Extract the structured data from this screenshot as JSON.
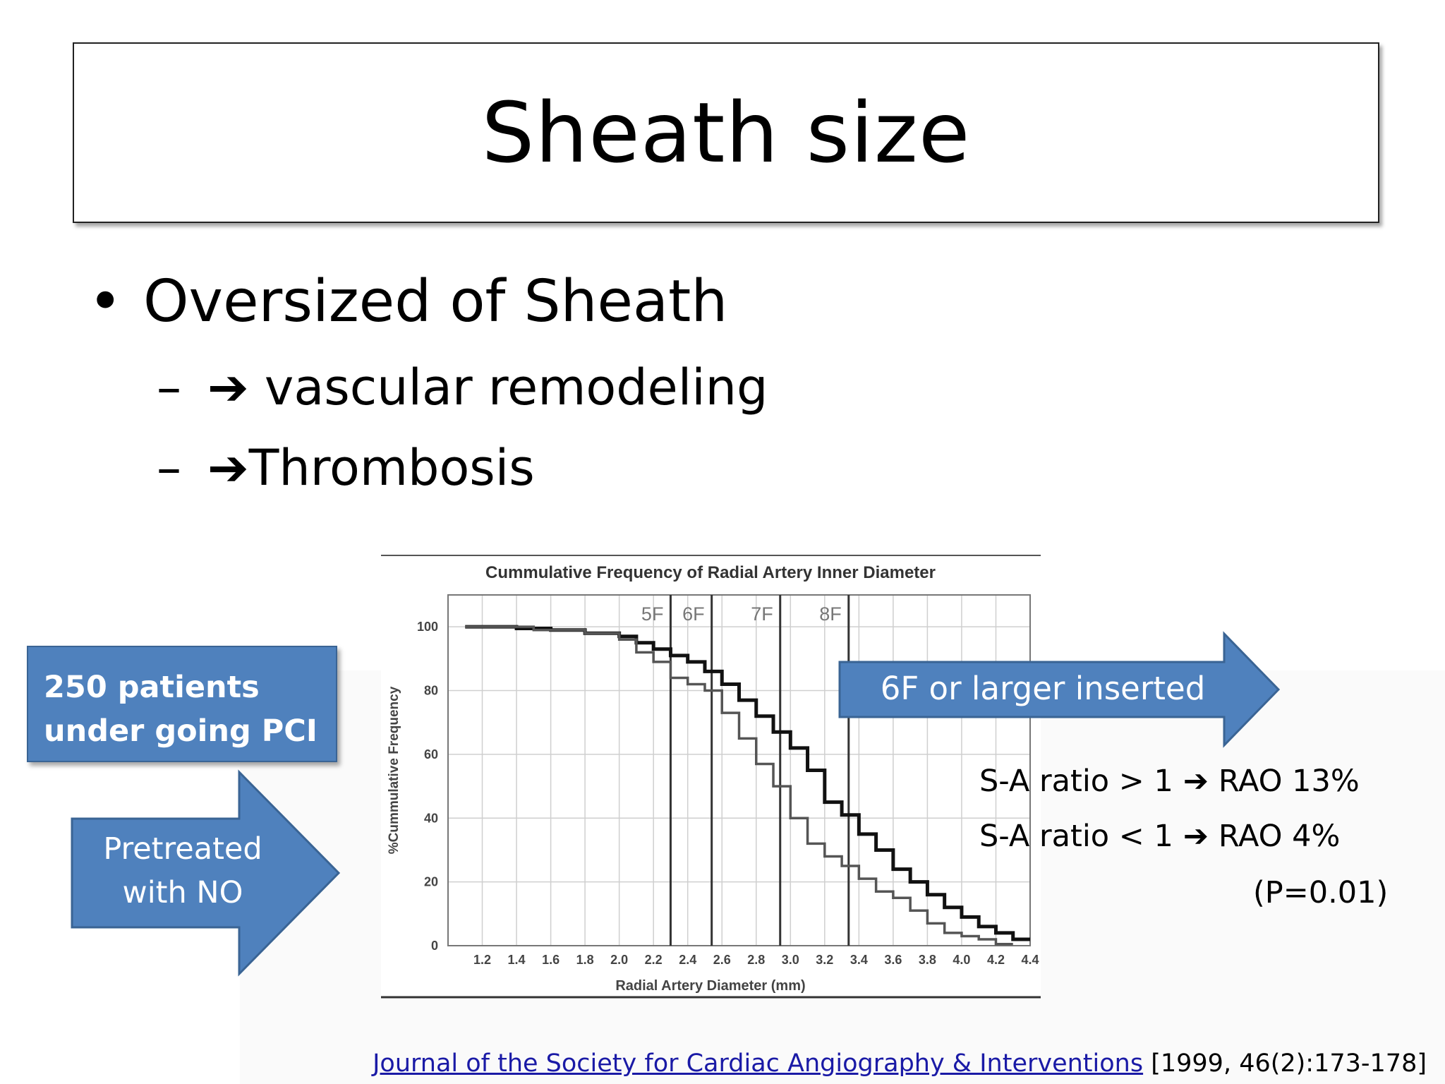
{
  "slide": {
    "title": "Sheath size",
    "bullet_marker": "•",
    "bullet1": "Oversized of Sheath",
    "sub_dash": "–",
    "sub_arrow": "➔",
    "sub1": " vascular remodeling",
    "sub2": "Thrombosis"
  },
  "callouts": {
    "patients_line1": "250 patients",
    "patients_line2": "under going PCI",
    "pretreated_line1": "Pretreated",
    "pretreated_line2": "with NO",
    "inserted": "6F or larger inserted"
  },
  "results": {
    "ratio_high_label": "S-A ratio > 1",
    "ratio_high_value": "RAO 13%",
    "ratio_low_label": "S-A ratio < 1",
    "ratio_low_value": "RAO 4%",
    "arrow": "➔",
    "p_value": "(P=0.01)"
  },
  "citation": {
    "journal": "Journal of the Society for Cardiac Angiography & Interventions",
    "ref": " [1999, 46(2):173-178]"
  },
  "colors": {
    "callout_fill": "#4f81bd",
    "callout_border": "#3a6494",
    "link": "#1a1aa6"
  },
  "chart_data": {
    "type": "line",
    "title": "Cummulative Frequency of Radial Artery Inner Diameter",
    "xlabel": "Radial Artery Diameter (mm)",
    "ylabel": "%Cummulative Frequency",
    "xlim": [
      1.0,
      4.4
    ],
    "ylim": [
      0,
      110
    ],
    "x_ticks": [
      1.2,
      1.4,
      1.6,
      1.8,
      2.0,
      2.2,
      2.4,
      2.6,
      2.8,
      3.0,
      3.2,
      3.4,
      3.6,
      3.8,
      4.0,
      4.2,
      4.4
    ],
    "y_ticks": [
      0,
      20,
      40,
      60,
      80,
      100
    ],
    "grid": true,
    "reference_lines": [
      {
        "label": "5F",
        "x": 2.3
      },
      {
        "label": "6F",
        "x": 2.54
      },
      {
        "label": "7F",
        "x": 2.94
      },
      {
        "label": "8F",
        "x": 3.34
      }
    ],
    "series": [
      {
        "style": "bold",
        "x": [
          1.1,
          1.4,
          1.6,
          1.8,
          2.0,
          2.1,
          2.2,
          2.3,
          2.4,
          2.5,
          2.6,
          2.7,
          2.8,
          2.9,
          3.0,
          3.1,
          3.2,
          3.3,
          3.4,
          3.5,
          3.6,
          3.7,
          3.8,
          3.9,
          4.0,
          4.1,
          4.2,
          4.3
        ],
        "y": [
          100,
          99.5,
          99,
          98,
          97,
          95,
          93,
          91,
          89,
          86,
          82,
          77,
          72,
          67,
          62,
          55,
          45,
          41,
          35,
          30,
          24,
          20,
          16,
          12,
          9,
          6,
          4,
          2
        ]
      },
      {
        "style": "thin",
        "x": [
          1.1,
          1.5,
          1.8,
          2.0,
          2.1,
          2.2,
          2.3,
          2.4,
          2.5,
          2.6,
          2.7,
          2.8,
          2.9,
          3.0,
          3.1,
          3.2,
          3.3,
          3.4,
          3.5,
          3.6,
          3.7,
          3.8,
          3.9,
          4.0,
          4.1,
          4.2
        ],
        "y": [
          100,
          99,
          98,
          96,
          92,
          89,
          84,
          82,
          80,
          73,
          65,
          57,
          50,
          40,
          32,
          28,
          25,
          21,
          17,
          15,
          11,
          7,
          4,
          3,
          2,
          0.5
        ]
      }
    ]
  }
}
